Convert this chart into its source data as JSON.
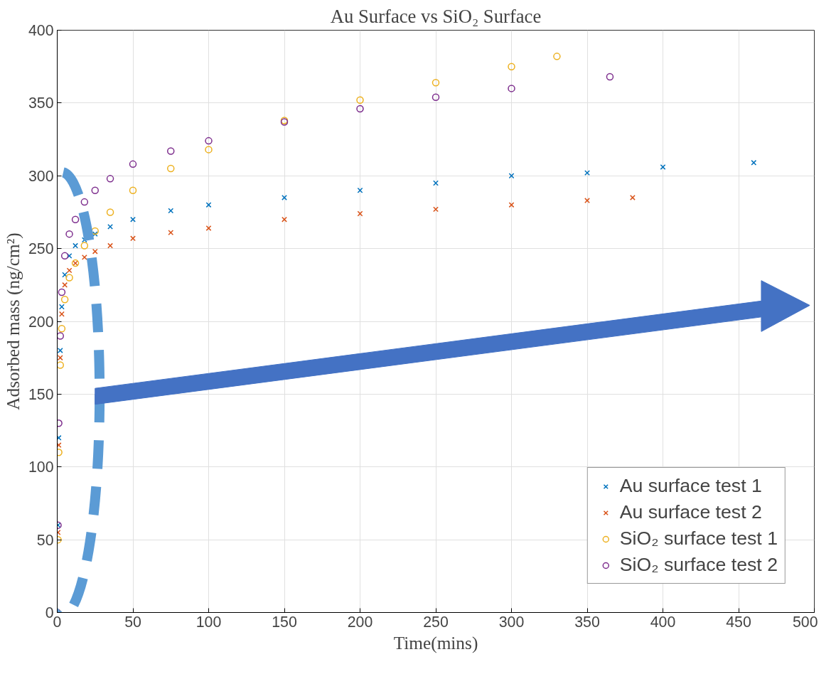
{
  "chart_data": {
    "type": "scatter",
    "title": "Au Surface vs SiO₂ Surface",
    "xlabel": "Time(mins)",
    "ylabel": "Adsorbed mass (ng/cm²)",
    "xlim": [
      0,
      500
    ],
    "ylim": [
      0,
      400
    ],
    "xticks": [
      0,
      50,
      100,
      150,
      200,
      250,
      300,
      350,
      400,
      450,
      500
    ],
    "yticks": [
      0,
      50,
      100,
      150,
      200,
      250,
      300,
      350,
      400
    ],
    "grid": true,
    "legend": "bottom right",
    "series": [
      {
        "name": "Au surface test 1",
        "color": "#0072bd",
        "marker": "cross",
        "x": [
          0.5,
          1,
          2,
          3,
          5,
          8,
          12,
          18,
          25,
          35,
          50,
          75,
          100,
          150,
          200,
          250,
          300,
          350,
          400,
          460
        ],
        "values": [
          60,
          120,
          180,
          210,
          232,
          245,
          252,
          256,
          260,
          265,
          270,
          276,
          280,
          285,
          290,
          295,
          300,
          302,
          306,
          309
        ]
      },
      {
        "name": "Au surface test 2",
        "color": "#d95319",
        "marker": "cross",
        "x": [
          0.5,
          1,
          2,
          3,
          5,
          8,
          12,
          18,
          25,
          35,
          50,
          75,
          100,
          150,
          200,
          250,
          300,
          350,
          380
        ],
        "values": [
          55,
          115,
          175,
          205,
          225,
          235,
          240,
          244,
          248,
          252,
          257,
          261,
          264,
          270,
          274,
          277,
          280,
          283,
          285
        ]
      },
      {
        "name": "SiO₂ surface test 1",
        "color": "#edb120",
        "marker": "circle",
        "x": [
          0,
          0.5,
          1,
          2,
          3,
          5,
          8,
          12,
          18,
          25,
          35,
          50,
          75,
          100,
          150,
          200,
          250,
          300,
          330
        ],
        "values": [
          0,
          50,
          110,
          170,
          195,
          215,
          230,
          240,
          252,
          262,
          275,
          290,
          305,
          318,
          338,
          352,
          364,
          375,
          382
        ]
      },
      {
        "name": "SiO₂ surface test 2",
        "color": "#7e2f8e",
        "marker": "circle",
        "x": [
          0,
          0.5,
          1,
          2,
          3,
          5,
          8,
          12,
          18,
          25,
          35,
          50,
          75,
          100,
          150,
          200,
          250,
          300,
          365
        ],
        "values": [
          0,
          60,
          130,
          190,
          220,
          245,
          260,
          270,
          282,
          290,
          298,
          308,
          317,
          324,
          337,
          346,
          354,
          360,
          368
        ]
      }
    ]
  }
}
